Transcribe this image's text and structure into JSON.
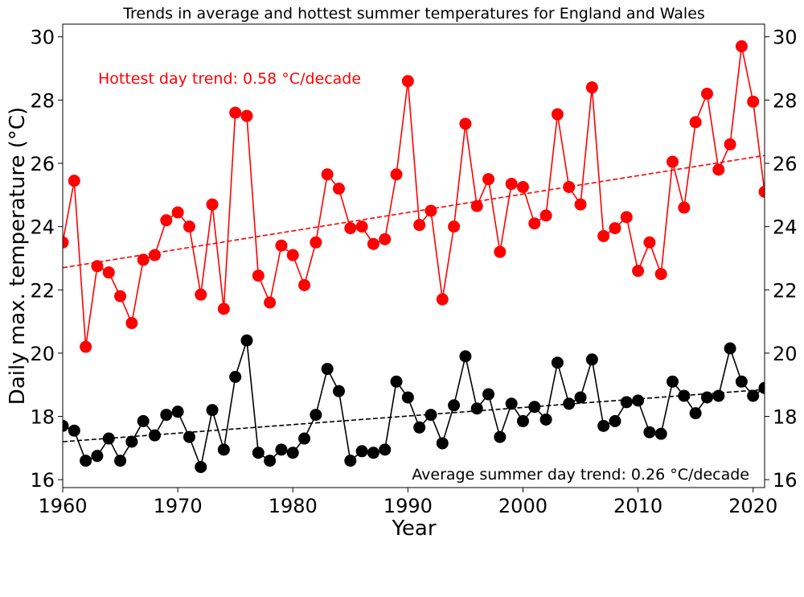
{
  "chart_data": {
    "type": "line",
    "title": "Trends in average and hottest summer temperatures for England and Wales",
    "xlabel": "Year",
    "ylabel": "Daily max. temperature (°C)",
    "xlim": [
      1960,
      2021
    ],
    "ylim": [
      15.75,
      30.4
    ],
    "x_ticks": [
      1960,
      1970,
      1980,
      1990,
      2000,
      2010,
      2020
    ],
    "y_ticks": [
      16,
      18,
      20,
      22,
      24,
      26,
      28,
      30
    ],
    "grid": false,
    "x": [
      1960,
      1961,
      1962,
      1963,
      1964,
      1965,
      1966,
      1967,
      1968,
      1969,
      1970,
      1971,
      1972,
      1973,
      1974,
      1975,
      1976,
      1977,
      1978,
      1979,
      1980,
      1981,
      1982,
      1983,
      1984,
      1985,
      1986,
      1987,
      1988,
      1989,
      1990,
      1991,
      1992,
      1993,
      1994,
      1995,
      1996,
      1997,
      1998,
      1999,
      2000,
      2001,
      2002,
      2003,
      2004,
      2005,
      2006,
      2007,
      2008,
      2009,
      2010,
      2011,
      2012,
      2013,
      2014,
      2015,
      2016,
      2017,
      2018,
      2019,
      2020,
      2021
    ],
    "series": [
      {
        "color": "#ff0000",
        "values": [
          23.5,
          25.45,
          20.2,
          22.75,
          22.55,
          21.8,
          20.95,
          22.95,
          23.1,
          24.2,
          24.45,
          24.0,
          21.85,
          24.7,
          21.4,
          27.6,
          27.5,
          22.45,
          21.6,
          23.4,
          23.1,
          22.15,
          23.5,
          25.65,
          25.2,
          23.95,
          24.0,
          23.45,
          23.6,
          25.65,
          28.6,
          24.05,
          24.5,
          21.7,
          24.0,
          27.25,
          24.65,
          25.5,
          23.2,
          25.35,
          25.25,
          24.1,
          24.35,
          27.55,
          25.25,
          24.7,
          28.4,
          23.7,
          23.95,
          24.3,
          22.6,
          23.5,
          22.5,
          26.05,
          24.6,
          27.3,
          28.2,
          25.8,
          26.6,
          29.7,
          27.95,
          25.1
        ]
      },
      {
        "color": "#000000",
        "values": [
          17.7,
          17.55,
          16.6,
          16.75,
          17.3,
          16.6,
          17.2,
          17.85,
          17.4,
          18.05,
          18.15,
          17.35,
          16.4,
          18.2,
          16.95,
          19.25,
          20.4,
          16.85,
          16.6,
          16.95,
          16.85,
          17.3,
          18.05,
          19.5,
          18.8,
          16.6,
          16.9,
          16.85,
          16.95,
          19.1,
          18.6,
          17.65,
          18.05,
          17.15,
          18.35,
          19.9,
          18.25,
          18.7,
          17.35,
          18.4,
          17.85,
          18.3,
          17.9,
          19.7,
          18.4,
          18.6,
          19.8,
          17.7,
          17.85,
          18.45,
          18.5,
          17.5,
          17.45,
          19.1,
          18.65,
          18.1,
          18.6,
          18.65,
          20.15,
          19.1,
          18.65,
          18.9
        ]
      }
    ],
    "trends": [
      {
        "color": "#ff0000",
        "x": [
          1960,
          2021
        ],
        "y": [
          22.7,
          26.25
        ],
        "style": "dashed"
      },
      {
        "color": "#000000",
        "x": [
          1960,
          2021
        ],
        "y": [
          17.2,
          18.85
        ],
        "style": "dashed"
      }
    ],
    "annotations": [
      {
        "text": "Hottest day trend: 0.58 °C/decade",
        "color": "#ff0000"
      },
      {
        "text": "Average summer day trend: 0.26 °C/decade",
        "color": "#000000"
      }
    ]
  }
}
